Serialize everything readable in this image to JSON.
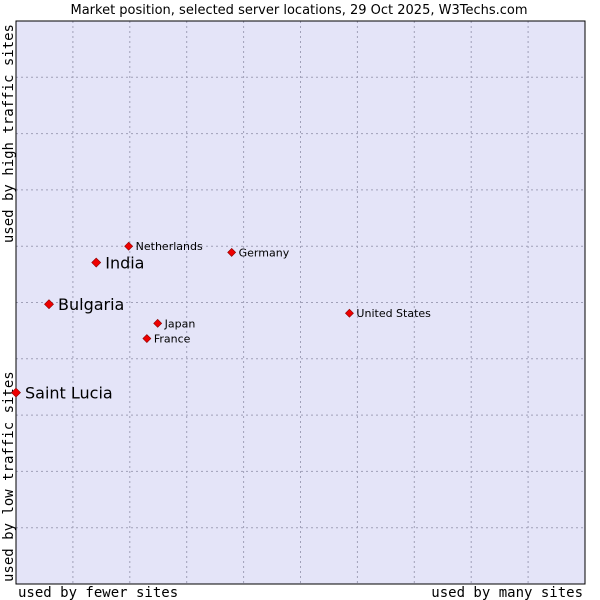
{
  "colors": {
    "plot_background": "#e4e4f8",
    "plot_border": "#000000",
    "grid": "#a0a0b8",
    "marker": "#ee0000",
    "marker_edge": "#880000"
  },
  "chart_data": {
    "type": "scatter",
    "title": "Market position, selected server locations, 29 Oct 2025, W3Techs.com",
    "xlabel_low": "used by fewer sites",
    "xlabel_high": "used by many sites",
    "ylabel_low": "used by low traffic sites",
    "ylabel_high": "used by high traffic sites",
    "xlim": [
      0,
      100
    ],
    "ylim": [
      0,
      100
    ],
    "grid": true,
    "grid_divisions": 10,
    "points": [
      {
        "name": "Netherlands",
        "x": 19.8,
        "y": 60.0,
        "highlight": false
      },
      {
        "name": "India",
        "x": 14.1,
        "y": 57.1,
        "highlight": true
      },
      {
        "name": "Germany",
        "x": 37.9,
        "y": 58.9,
        "highlight": false
      },
      {
        "name": "Bulgaria",
        "x": 5.8,
        "y": 49.7,
        "highlight": true
      },
      {
        "name": "United States",
        "x": 58.6,
        "y": 48.1,
        "highlight": false
      },
      {
        "name": "Japan",
        "x": 24.9,
        "y": 46.3,
        "highlight": false
      },
      {
        "name": "France",
        "x": 23.0,
        "y": 43.6,
        "highlight": false
      },
      {
        "name": "Saint Lucia",
        "x": 0.0,
        "y": 34.0,
        "highlight": true
      }
    ]
  }
}
